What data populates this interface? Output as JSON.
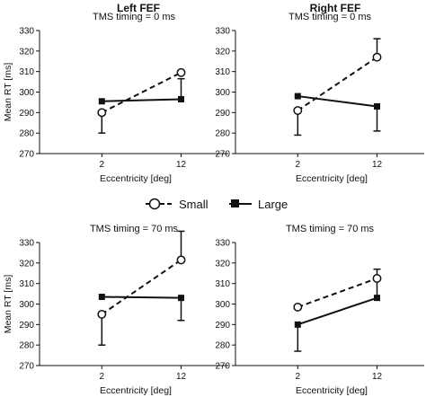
{
  "columns": [
    "Left FEF",
    "Right FEF"
  ],
  "legend": [
    {
      "label": "Small",
      "marker": "open-circle",
      "line": "dashed"
    },
    {
      "label": "Large",
      "marker": "filled-square",
      "line": "solid"
    }
  ],
  "colors": {
    "ink": "#111111",
    "background": "#ffffff"
  },
  "chart_data": [
    {
      "type": "line",
      "row": 0,
      "col": 0,
      "title": "Left FEF",
      "subtitle": "TMS timing = 0 ms",
      "xlabel": "Eccentricity [deg]",
      "ylabel": "Mean RT [ms]",
      "categories": [
        "2",
        "12"
      ],
      "ylim": [
        270,
        330
      ],
      "yticks": [
        270,
        280,
        290,
        300,
        310,
        320,
        330
      ],
      "series": [
        {
          "name": "Small",
          "values": [
            290,
            309.5
          ],
          "err": [
            10,
            0
          ]
        },
        {
          "name": "Large",
          "values": [
            295.5,
            296.5
          ],
          "err": [
            0,
            10
          ]
        }
      ]
    },
    {
      "type": "line",
      "row": 0,
      "col": 1,
      "title": "Right FEF",
      "subtitle": "TMS timing = 0 ms",
      "xlabel": "Eccentricity [deg]",
      "ylabel": "",
      "categories": [
        "2",
        "12"
      ],
      "ylim": [
        270,
        330
      ],
      "yticks": [
        270,
        280,
        290,
        300,
        310,
        320,
        330
      ],
      "series": [
        {
          "name": "Small",
          "values": [
            291,
            317
          ],
          "err": [
            12,
            9
          ]
        },
        {
          "name": "Large",
          "values": [
            298,
            293
          ],
          "err": [
            0,
            12
          ]
        }
      ]
    },
    {
      "type": "line",
      "row": 1,
      "col": 0,
      "title": "",
      "subtitle": "TMS timing = 70 ms",
      "xlabel": "Eccentricity [deg]",
      "ylabel": "Mean RT [ms]",
      "categories": [
        "2",
        "12"
      ],
      "ylim": [
        270,
        330
      ],
      "yticks": [
        270,
        280,
        290,
        300,
        310,
        320,
        330
      ],
      "series": [
        {
          "name": "Small",
          "values": [
            295,
            321.5
          ],
          "err": [
            15,
            14
          ]
        },
        {
          "name": "Large",
          "values": [
            303.5,
            303
          ],
          "err": [
            0,
            11
          ]
        }
      ]
    },
    {
      "type": "line",
      "row": 1,
      "col": 1,
      "title": "",
      "subtitle": "TMS timing = 70 ms",
      "xlabel": "Eccentricity [deg]",
      "ylabel": "",
      "categories": [
        "2",
        "12"
      ],
      "ylim": [
        270,
        330
      ],
      "yticks": [
        270,
        280,
        290,
        300,
        310,
        320,
        330
      ],
      "series": [
        {
          "name": "Small",
          "values": [
            298.5,
            312.5
          ],
          "err": [
            0,
            0
          ]
        },
        {
          "name": "Large",
          "values": [
            290,
            303
          ],
          "err": [
            13,
            14
          ]
        }
      ]
    }
  ]
}
